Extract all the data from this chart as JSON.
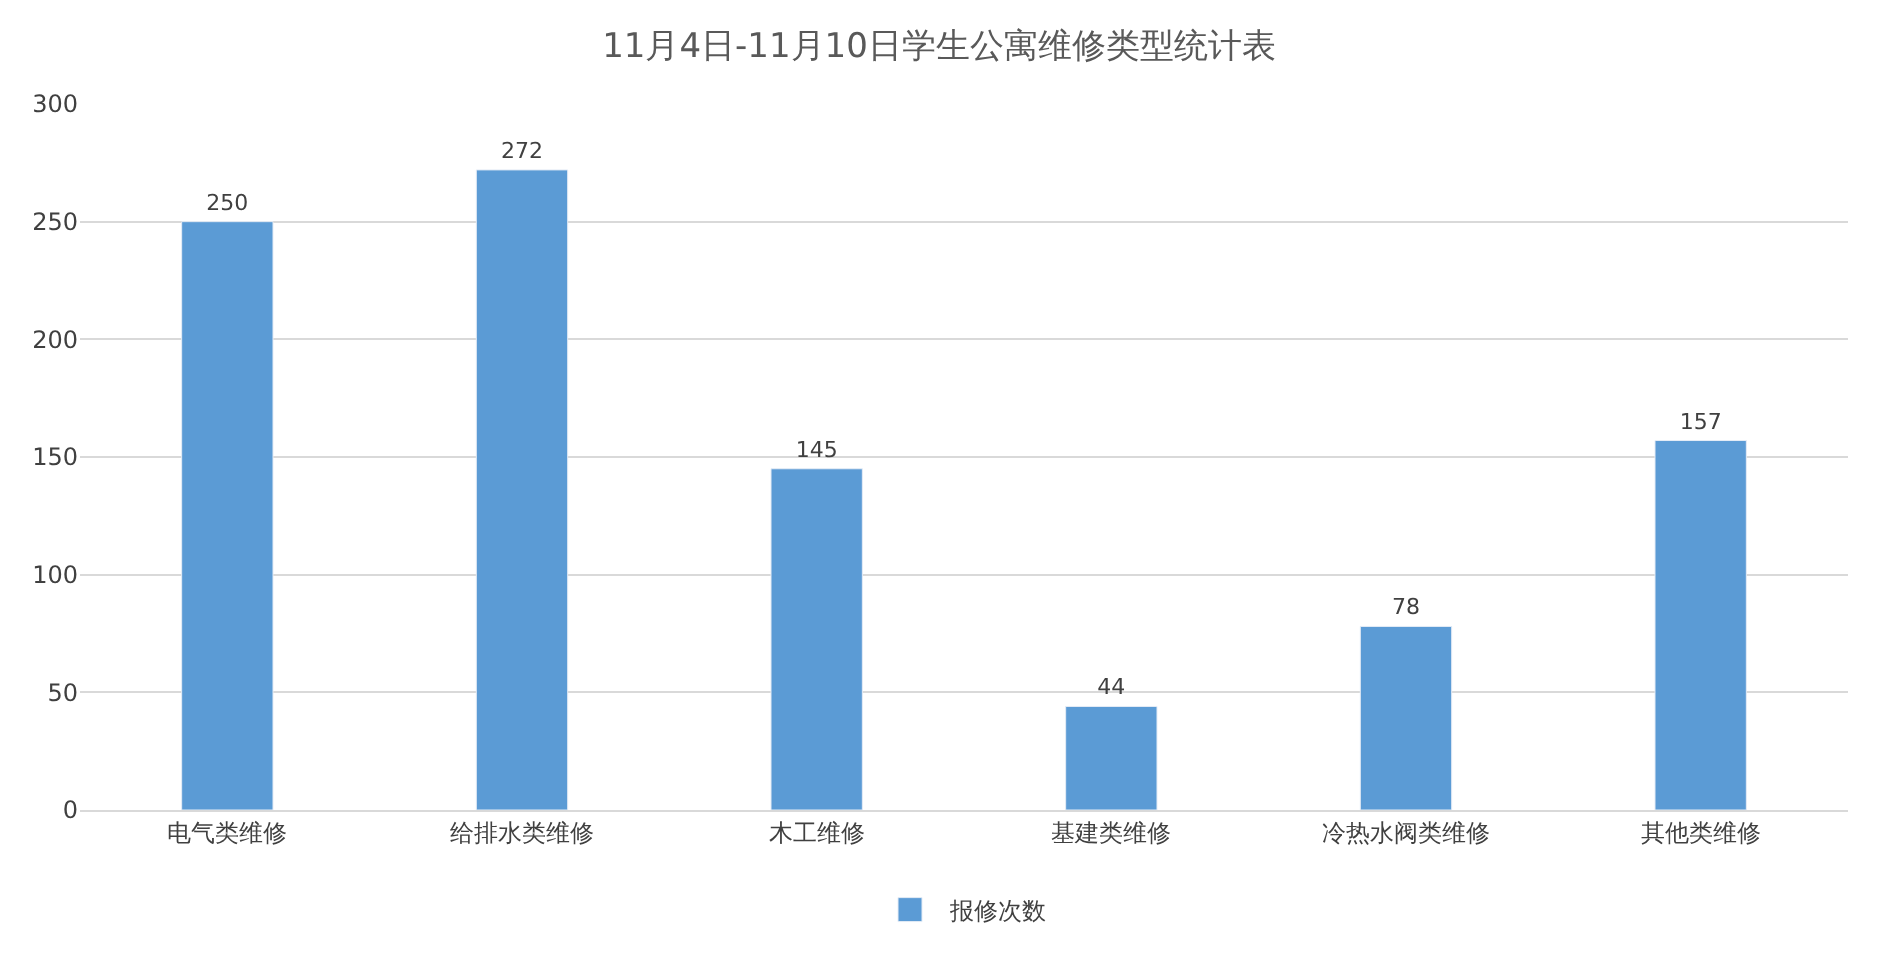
{
  "chart_data": {
    "type": "bar",
    "title": "11月4日-11月10日学生公寓维修类型统计表",
    "categories": [
      "电气类维修",
      "给排水类维修",
      "木工维修",
      "基建类维修",
      "冷热水阀类维修",
      "其他类维修"
    ],
    "series": [
      {
        "name": "报修次数",
        "color": "#5b9bd5",
        "values": [
          250,
          272,
          145,
          44,
          78,
          157
        ]
      }
    ],
    "ylim": [
      0,
      300
    ],
    "yticks": [
      0,
      50,
      100,
      150,
      200,
      250,
      300
    ],
    "grid": "y",
    "legend": "bottom",
    "data_labels": true
  }
}
